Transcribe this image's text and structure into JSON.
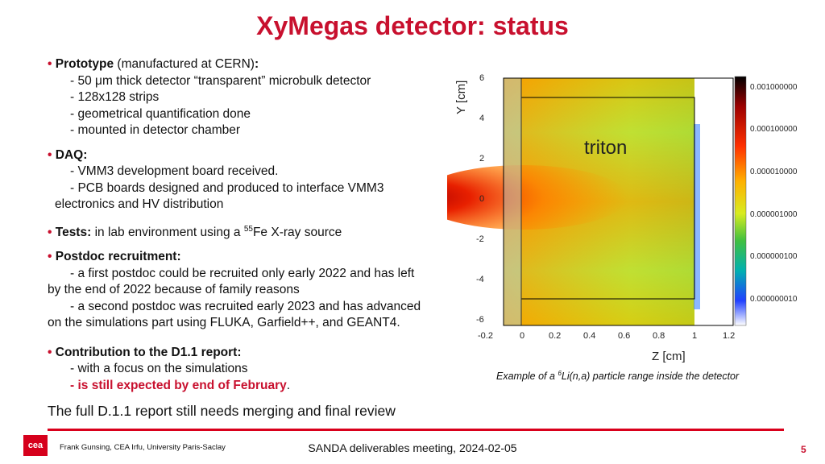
{
  "title": "XyMegas detector: status",
  "bullets": {
    "prototype": {
      "head": "Prototype",
      "rest": "(manufactured at CERN)",
      "colon": ":",
      "items": [
        "- 50 μm thick detector “transparent” microbulk detector",
        "- 128x128 strips",
        "- geometrical quantification done",
        "- mounted in detector chamber"
      ]
    },
    "daq": {
      "head": "DAQ:",
      "items": [
        "- VMM3 development board received.",
        "- PCB boards designed and produced to interface VMM3"
      ],
      "cont": "electronics and HV distribution"
    },
    "tests": {
      "head": "Tests:",
      "rest_a": "in lab environment using a",
      "sup": "55",
      "rest_b": "Fe X-ray source"
    },
    "postdoc": {
      "head": "Postdoc recruitment:",
      "item1": "- a first postdoc could be recruited only early 2022 and has left",
      "cont1": "by the end of 2022 because of family reasons",
      "item2": "- a second postdoc was recruited early 2023 and has advanced",
      "cont2": "on the simulations part using FLUKA, Garfield++, and GEANT4."
    },
    "contribution": {
      "head": "Contribution to the D1.1 report:",
      "item1": "- with a focus on the simulations",
      "item2": "- is still expected by end of February",
      "item2_end": "."
    }
  },
  "review": "The full D.1.1 report still needs merging and final review",
  "footer": {
    "logo_text": "cea",
    "author": "Frank Gunsing, CEA Irfu, University Paris-Saclay",
    "meeting": "SANDA deliverables meeting, 2024-02-05",
    "page": "5"
  },
  "caption": {
    "pre": "Example of a",
    "sup": "6",
    "post": "Li(n,a) particle range inside the detector"
  },
  "plot": {
    "label": "triton",
    "xlabel": "Z [cm]",
    "ylabel": "Y [cm]",
    "xticks": [
      "-0.2",
      "0",
      "0.2",
      "0.4",
      "0.6",
      "0.8",
      "1",
      "1.2"
    ],
    "yticks": [
      "6",
      "4",
      "2",
      "0",
      "-2",
      "-4",
      "-6"
    ],
    "colorbar_ticks": [
      "0.001000000",
      "0.000100000",
      "0.000010000",
      "0.000001000",
      "0.000000100",
      "0.000000010"
    ],
    "colors": [
      "#ffffff",
      "#ffb000",
      "#c0e000",
      "#00b060",
      "#2040ff",
      "#000000"
    ]
  }
}
